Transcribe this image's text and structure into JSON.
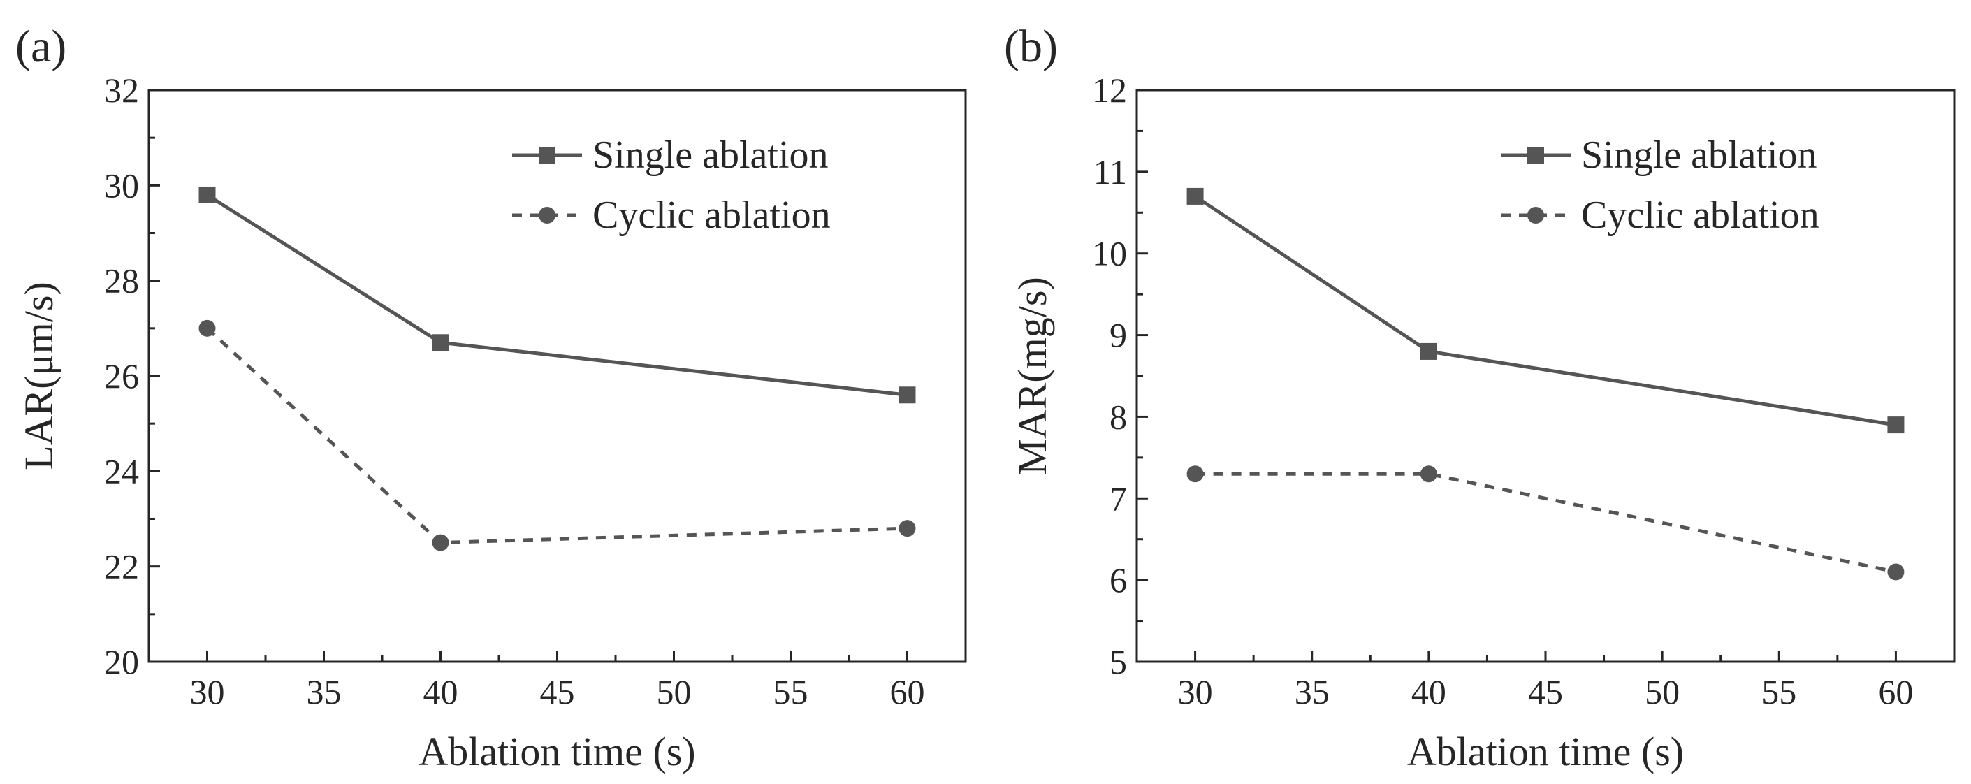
{
  "colors": {
    "ink": "#262626",
    "series": "#555555",
    "background": "#ffffff"
  },
  "chart_data": [
    {
      "type": "line",
      "panel_label": "(a)",
      "xlabel": "Ablation time (s)",
      "ylabel": "LAR(μm/s)",
      "xlim": [
        27.5,
        62.5
      ],
      "ylim": [
        20,
        32
      ],
      "xticks": [
        30,
        35,
        40,
        45,
        50,
        55,
        60
      ],
      "yticks": [
        20,
        22,
        24,
        26,
        28,
        30,
        32
      ],
      "legend_position": "top-right",
      "series": [
        {
          "name": "Single ablation",
          "marker": "square",
          "line": "solid",
          "x": [
            30,
            40,
            60
          ],
          "y": [
            29.8,
            26.7,
            25.6
          ]
        },
        {
          "name": "Cyclic ablation",
          "marker": "circle",
          "line": "dashed",
          "x": [
            30,
            40,
            60
          ],
          "y": [
            27.0,
            22.5,
            22.8
          ]
        }
      ]
    },
    {
      "type": "line",
      "panel_label": "(b)",
      "xlabel": "Ablation time (s)",
      "ylabel": "MAR(mg/s)",
      "xlim": [
        27.5,
        62.5
      ],
      "ylim": [
        5,
        12
      ],
      "xticks": [
        30,
        35,
        40,
        45,
        50,
        55,
        60
      ],
      "yticks": [
        5,
        6,
        7,
        8,
        9,
        10,
        11,
        12
      ],
      "legend_position": "top-right",
      "series": [
        {
          "name": "Single ablation",
          "marker": "square",
          "line": "solid",
          "x": [
            30,
            40,
            60
          ],
          "y": [
            10.7,
            8.8,
            7.9
          ]
        },
        {
          "name": "Cyclic ablation",
          "marker": "circle",
          "line": "dashed",
          "x": [
            30,
            40,
            60
          ],
          "y": [
            7.3,
            7.3,
            6.1
          ]
        }
      ]
    }
  ]
}
